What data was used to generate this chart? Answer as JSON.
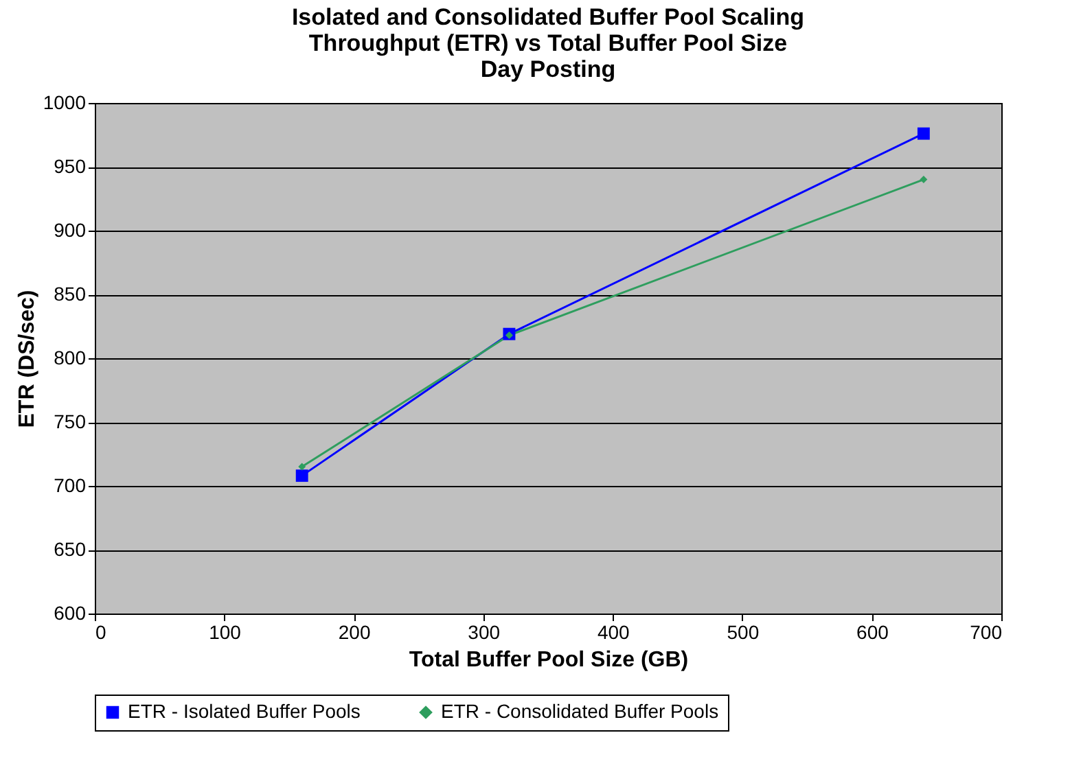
{
  "chart_data": {
    "type": "line",
    "title": [
      "Isolated and Consolidated Buffer Pool Scaling",
      "Throughput (ETR)  vs  Total Buffer Pool Size",
      "Day Posting"
    ],
    "xlabel": "Total Buffer Pool Size (GB)",
    "ylabel": "ETR (DS/sec)",
    "x": [
      160,
      320,
      640
    ],
    "series": [
      {
        "name": "ETR - Isolated Buffer Pools",
        "color": "#0000ff",
        "marker": "square",
        "values": [
          708,
          819,
          976
        ]
      },
      {
        "name": "ETR - Consolidated Buffer Pools",
        "color": "#2e9e5e",
        "marker": "diamond",
        "values": [
          715,
          818,
          940
        ]
      }
    ],
    "xlim": [
      0,
      700
    ],
    "xticks": [
      0,
      100,
      200,
      300,
      400,
      500,
      600,
      700
    ],
    "ylim": [
      600,
      1000
    ],
    "yticks": [
      600,
      650,
      700,
      750,
      800,
      850,
      900,
      950,
      1000
    ],
    "grid": "y",
    "legend": "bottom",
    "line_style": "solid"
  }
}
